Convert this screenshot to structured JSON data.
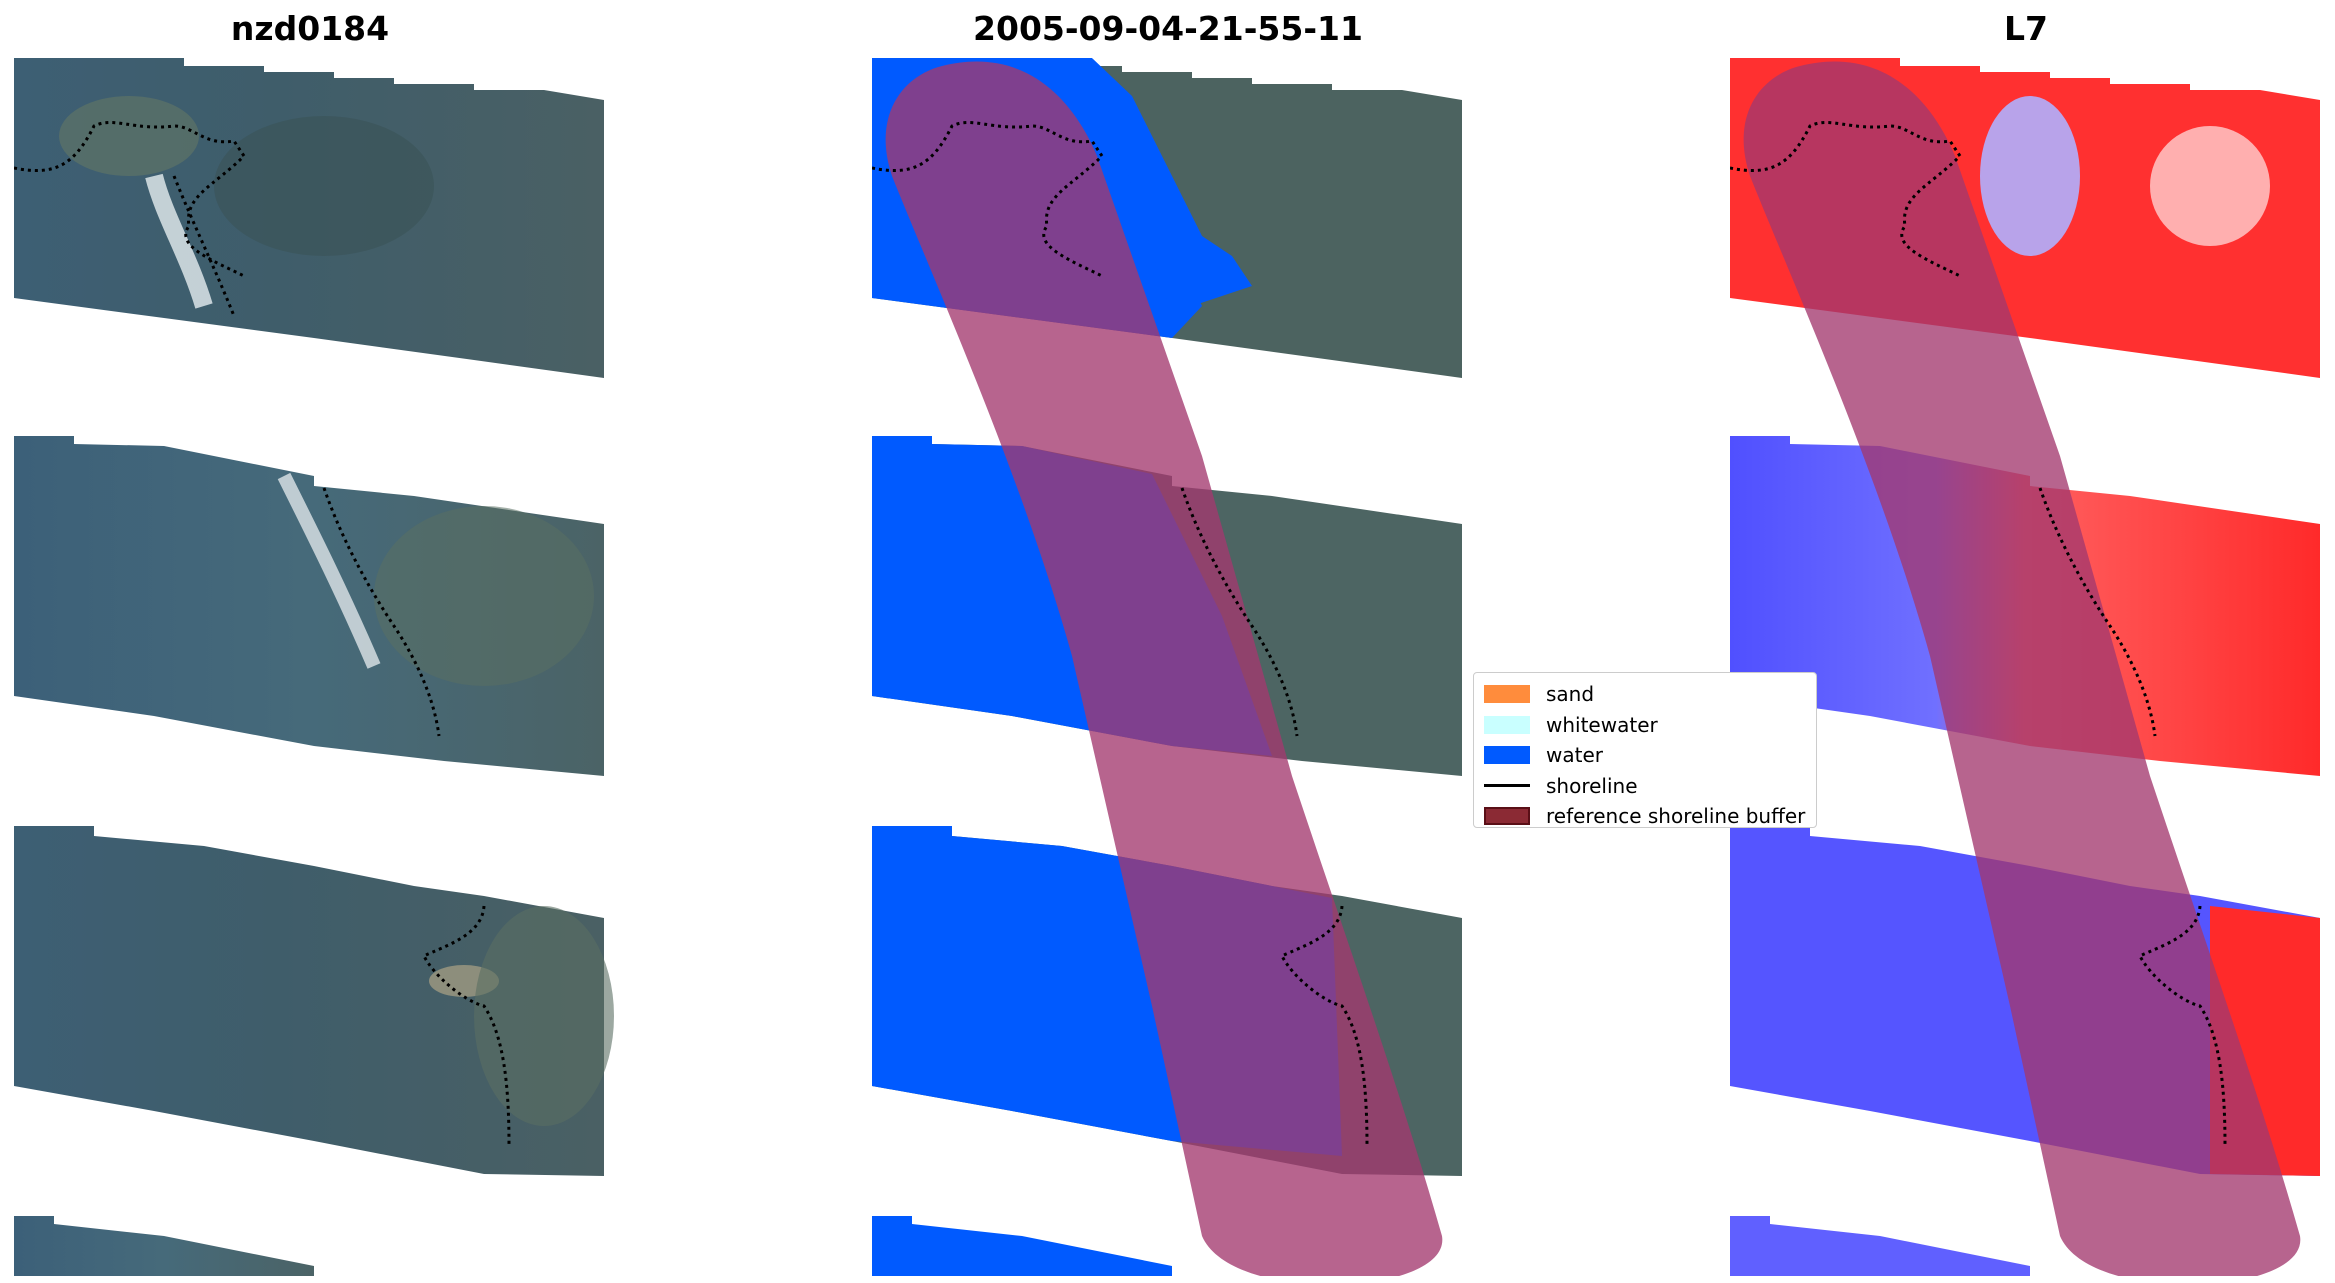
{
  "panels": [
    {
      "title": "nzd0184"
    },
    {
      "title": "2005-09-04-21-55-11"
    },
    {
      "title": "L7"
    }
  ],
  "legend": {
    "items": [
      {
        "label": "sand",
        "kind": "patch",
        "color": "#ff8c3c"
      },
      {
        "label": "whitewater",
        "kind": "patch",
        "color": "#c9ffff"
      },
      {
        "label": "water",
        "kind": "patch",
        "color": "#005aff"
      },
      {
        "label": "shoreline",
        "kind": "line",
        "color": "#000000"
      },
      {
        "label": "reference shoreline buffer",
        "kind": "patch",
        "color": "#8b2a34",
        "edge": "#5a0f17"
      }
    ]
  },
  "colors": {
    "imagery_water": "#3e5e73",
    "imagery_land": "#4f6763",
    "buffer": "#a3386e",
    "classified_water": "#005aff",
    "index_water": "#3a3aff",
    "index_land": "#ff2020"
  }
}
